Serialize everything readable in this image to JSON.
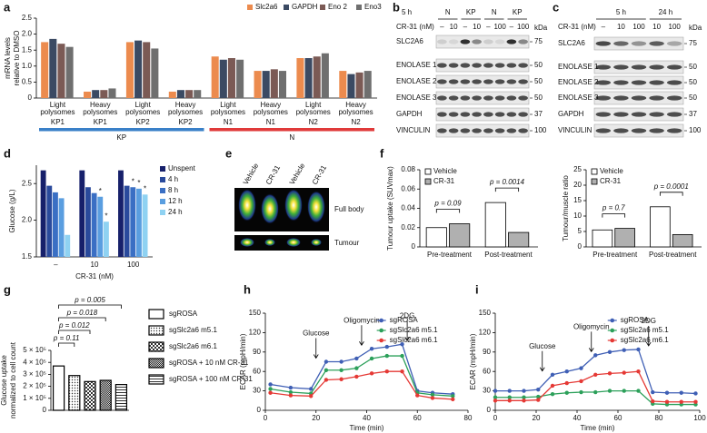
{
  "chart_data": [
    {
      "label": "a",
      "type": "bar",
      "ylabel": [
        "mRNA levels",
        "relative to DMSO"
      ],
      "categories": [
        [
          "Light",
          "polysomes"
        ],
        [
          "Heavy",
          "polysomes"
        ],
        [
          "Light",
          "polysomes"
        ],
        [
          "Heavy",
          "polysomes"
        ],
        [
          "Light",
          "polysomes"
        ],
        [
          "Heavy",
          "polysomes"
        ],
        [
          "Light",
          "polysomes"
        ],
        [
          "Heavy",
          "polysomes"
        ]
      ],
      "sublabels": [
        "KP1",
        "KP1",
        "KP2",
        "KP2",
        "N1",
        "N1",
        "N2",
        "N2"
      ],
      "groups": [
        {
          "name": "KP",
          "color": "#3a80c8"
        },
        {
          "name": "N",
          "color": "#e03a3a"
        }
      ],
      "series": [
        {
          "name": "Slc2a6",
          "color": "#ec8b4e",
          "values": [
            1.75,
            0.2,
            1.75,
            0.2,
            1.3,
            0.85,
            1.25,
            0.85
          ]
        },
        {
          "name": "GAPDH",
          "color": "#3b4a63",
          "values": [
            1.85,
            0.25,
            1.8,
            0.25,
            1.2,
            0.85,
            1.25,
            0.75
          ]
        },
        {
          "name": "Eno 2",
          "color": "#7b5a55",
          "values": [
            1.7,
            0.25,
            1.75,
            0.25,
            1.25,
            0.9,
            1.3,
            0.8
          ]
        },
        {
          "name": "Eno3",
          "color": "#6f6f6f",
          "values": [
            1.6,
            0.3,
            1.55,
            0.25,
            1.2,
            0.85,
            1.4,
            0.85
          ]
        }
      ],
      "ylim": [
        0,
        2.5
      ],
      "yticks": [
        0,
        0.5,
        {
          "value": 1,
          "label": "1.0"
        },
        1.5,
        {
          "value": 2,
          "label": "2.0"
        },
        2.5
      ],
      "legend": "top"
    },
    {
      "label": "d",
      "type": "bar",
      "ylabel": "Glucose (g/L)",
      "xlabel": "CR-31 (nM)",
      "categories": [
        "–",
        "10",
        "100"
      ],
      "series": [
        {
          "name": "Unspent",
          "color": "#17206b",
          "values": [
            2.68,
            2.68,
            2.68
          ]
        },
        {
          "name": "4 h",
          "color": "#2a4a9c",
          "values": [
            2.47,
            2.45,
            2.47
          ]
        },
        {
          "name": "8 h",
          "color": "#3a6fc4",
          "values": [
            2.38,
            2.37,
            2.45
          ],
          "significance": [
            null,
            null,
            "*"
          ]
        },
        {
          "name": "12 h",
          "color": "#5a9ee0",
          "values": [
            2.3,
            2.32,
            2.43
          ],
          "significance": [
            null,
            "*",
            "*"
          ]
        },
        {
          "name": "24 h",
          "color": "#8fd2f2",
          "values": [
            1.8,
            1.98,
            2.35
          ],
          "significance": [
            null,
            "*",
            "*"
          ]
        }
      ],
      "ylim": [
        1.5,
        2.75
      ],
      "yticks": [
        1.5,
        {
          "value": 2,
          "label": "2.0"
        },
        2.5
      ],
      "legend": "right"
    },
    {
      "label": "f",
      "type": "bar",
      "ylabel": "Tumour uptake (SUVmax)",
      "categories": [
        "Pre-treatment",
        "Post-treatment"
      ],
      "series": [
        {
          "name": "Vehicle",
          "color": "#ffffff",
          "values": [
            0.02,
            0.046
          ]
        },
        {
          "name": "CR-31",
          "color": "#b0b0b0",
          "values": [
            0.024,
            0.015
          ]
        }
      ],
      "annotations": [
        "p = 0.09",
        "p = 0.0014"
      ],
      "edgecolor": "#000000",
      "ylim": [
        0,
        0.08
      ],
      "yticks": [
        0,
        0.02,
        0.04,
        0.06,
        0.08
      ],
      "legend": "top-left"
    },
    {
      "type": "bar",
      "ylabel": "Tumour/muscle ratio",
      "categories": [
        "Pre-treatment",
        "Post-treatment"
      ],
      "series": [
        {
          "name": "Vehicle",
          "color": "#ffffff",
          "values": [
            5.5,
            13
          ]
        },
        {
          "name": "CR-31",
          "color": "#b0b0b0",
          "values": [
            6,
            4
          ]
        }
      ],
      "annotations": [
        "p = 0.7",
        "p = 0.0001"
      ],
      "edgecolor": "#000000",
      "ylim": [
        0,
        25
      ],
      "yticks": [
        0,
        5,
        10,
        15,
        20,
        25
      ],
      "legend": "top-left"
    },
    {
      "label": "g",
      "type": "bar",
      "ylabel": [
        "Glucose uptake",
        "normalized to cell count"
      ],
      "categories": [
        "sgROSA",
        "sgSlc2a6 m5.1",
        "sgSlc2a6 m6.1",
        "sgROSA + 10 nM CR-31",
        "sgROSA + 100 nM CR-31"
      ],
      "values": [
        370000,
        290000,
        240000,
        250000,
        215000
      ],
      "patterns": [
        "none",
        "dots",
        "checker",
        "fine-checker",
        "stripes"
      ],
      "edgecolor": "#000000",
      "annotations": [
        "p = 0.11",
        "p = 0.012",
        "p = 0.018",
        "p = 0.005"
      ],
      "ylim": [
        0,
        500000
      ],
      "yticks": [
        0,
        {
          "value": 100000,
          "label": "1 × 10⁵"
        },
        {
          "value": 200000,
          "label": "2 × 10⁵"
        },
        {
          "value": 300000,
          "label": "3 × 10⁵"
        },
        {
          "value": 400000,
          "label": "4 × 10⁵"
        },
        {
          "value": 500000,
          "label": "5 × 10⁵"
        }
      ],
      "legend": "right"
    },
    {
      "label": "h",
      "type": "line",
      "ylabel": "ECAR (mpH/min)",
      "xlabel": "Time (min)",
      "x": [
        2,
        10,
        18,
        24,
        30,
        36,
        42,
        48,
        54,
        60,
        66,
        74
      ],
      "series": [
        {
          "name": "sgROSA",
          "color": "#3f5fb5",
          "values": [
            40,
            35,
            33,
            75,
            75,
            80,
            95,
            98,
            102,
            30,
            27,
            25
          ]
        },
        {
          "name": "sgSlc2a6 m5.1",
          "color": "#2ca05a",
          "values": [
            33,
            28,
            26,
            62,
            62,
            65,
            80,
            84,
            84,
            27,
            24,
            22
          ]
        },
        {
          "name": "sgSlc2a6 m6.1",
          "color": "#e53935",
          "values": [
            27,
            23,
            22,
            47,
            48,
            52,
            57,
            60,
            60,
            23,
            19,
            17
          ]
        }
      ],
      "annotations": [
        "Glucose",
        "Oligomycin",
        "2DG"
      ],
      "xlim": [
        0,
        80
      ],
      "xticks": [
        0,
        20,
        40,
        60,
        80
      ],
      "ylim": [
        0,
        150
      ],
      "yticks": [
        0,
        30,
        60,
        90,
        120,
        150
      ],
      "legend": "top-right"
    },
    {
      "label": "i",
      "type": "line",
      "ylabel": "ECAR (mpH/min)",
      "xlabel": "Time (min)",
      "x": [
        0,
        7,
        14,
        21,
        28,
        35,
        42,
        49,
        56,
        63,
        70,
        77,
        84,
        91,
        98
      ],
      "series": [
        {
          "name": "sgROSA",
          "color": "#3f5fb5",
          "values": [
            30,
            30,
            30,
            32,
            55,
            60,
            65,
            85,
            90,
            93,
            94,
            28,
            27,
            27,
            26
          ]
        },
        {
          "name": "sgSlc2a6 m5.1",
          "color": "#2ca05a",
          "values": [
            20,
            20,
            20,
            21,
            25,
            27,
            28,
            28,
            30,
            30,
            30,
            10,
            9,
            9,
            9
          ]
        },
        {
          "name": "sgSlc2a6 m6.1",
          "color": "#e53935",
          "values": [
            15,
            15,
            15,
            16,
            38,
            42,
            45,
            55,
            57,
            58,
            60,
            14,
            13,
            13,
            13
          ]
        }
      ],
      "annotations": [
        "Glucose",
        "Oligomycin",
        "2DG"
      ],
      "xlim": [
        0,
        100
      ],
      "xticks": [
        0,
        20,
        40,
        60,
        80,
        100
      ],
      "ylim": [
        0,
        150
      ],
      "yticks": [
        0,
        30,
        60,
        90,
        120,
        150
      ],
      "legend": "top-right"
    }
  ],
  "blots": [
    {
      "label": "b",
      "times": [
        "5 h"
      ],
      "treatment": "CR-31 (nM)",
      "conditions": [
        "N",
        "KP",
        "N",
        "KP"
      ],
      "doses": [
        "–",
        "10",
        "–",
        "10",
        "–",
        "100",
        "–",
        "100"
      ],
      "unit": "kDa",
      "proteins": [
        "SLC2A6",
        "ENOLASE 1",
        "ENOLASE 2",
        "ENOLASE 3",
        "GAPDH",
        "VINCULIN"
      ],
      "markers": [
        75,
        50,
        50,
        50,
        37,
        100
      ]
    },
    {
      "label": "c",
      "times": [
        "5 h",
        "24 h"
      ],
      "treatment": "CR-31 (nM)",
      "doses": [
        "–",
        "10",
        "100",
        "10",
        "100"
      ],
      "unit": "kDa",
      "proteins": [
        "SLC2A6",
        "ENOLASE 1",
        "ENOLASE 2",
        "ENOLASE 3",
        "GAPDH",
        "VINCULIN"
      ],
      "markers": [
        75,
        50,
        50,
        50,
        37,
        100
      ]
    }
  ],
  "imaging": {
    "label": "e",
    "columns": [
      "Vehicle",
      "CR-31",
      "Vehicle",
      "CR-31"
    ],
    "rows": [
      "Full body",
      "Tumour"
    ]
  }
}
